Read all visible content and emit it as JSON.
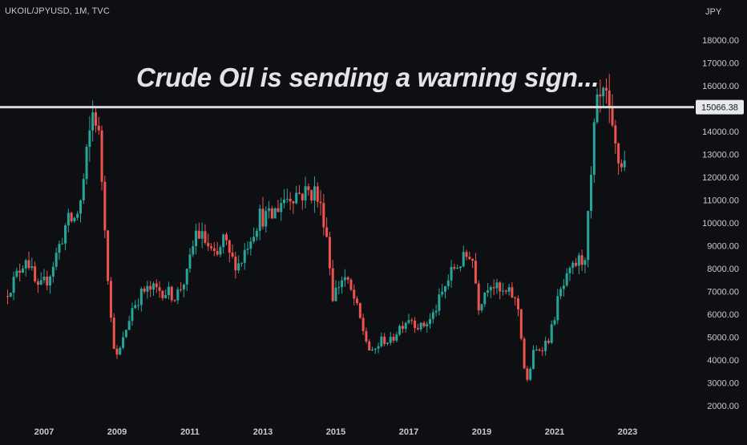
{
  "header": {
    "symbol": "UKOIL/JPYUSD, 1M, TVC",
    "headline": "Crude Oil is sending a warning sign..."
  },
  "colors": {
    "background": "#0e0f13",
    "up": "#26a69a",
    "down": "#ef5350",
    "level_line": "#d7d8dc",
    "axis_text": "#c8cad0"
  },
  "chart_data": {
    "type": "candlestick",
    "title": "",
    "currency_label": "JPY",
    "interval": "1M",
    "y_ticks": [
      2000,
      3000,
      4000,
      5000,
      6000,
      7000,
      8000,
      9000,
      10000,
      11000,
      12000,
      13000,
      14000,
      15000,
      16000,
      17000,
      18000
    ],
    "y_tick_labels": [
      "2000.00",
      "3000.00",
      "4000.00",
      "5000.00",
      "6000.00",
      "7000.00",
      "8000.00",
      "9000.00",
      "10000.00",
      "11000.00",
      "12000.00",
      "13000.00",
      "14000.00",
      "15000.00",
      "16000.00",
      "17000.00",
      "18000.00"
    ],
    "x_tick_labels": [
      "2007",
      "2009",
      "2011",
      "2013",
      "2015",
      "2017",
      "2019",
      "2021",
      "2023"
    ],
    "x_range_years": [
      2006.0,
      2024.1
    ],
    "y_range": [
      1500,
      19200
    ],
    "horizontal_level": {
      "value": 15066.38,
      "label": "15066.38"
    },
    "anchors": [
      [
        2006.0,
        6800
      ],
      [
        2006.3,
        7600
      ],
      [
        2006.6,
        8600
      ],
      [
        2006.9,
        7000
      ],
      [
        2007.2,
        7600
      ],
      [
        2007.5,
        9000
      ],
      [
        2007.7,
        10000
      ],
      [
        2007.95,
        10200
      ],
      [
        2008.1,
        11000
      ],
      [
        2008.3,
        13500
      ],
      [
        2008.45,
        15200
      ],
      [
        2008.6,
        13500
      ],
      [
        2008.75,
        10000
      ],
      [
        2008.9,
        6000
      ],
      [
        2009.05,
        4000
      ],
      [
        2009.2,
        4600
      ],
      [
        2009.5,
        6300
      ],
      [
        2009.8,
        7000
      ],
      [
        2010.1,
        7100
      ],
      [
        2010.4,
        7000
      ],
      [
        2010.7,
        6800
      ],
      [
        2011.0,
        7700
      ],
      [
        2011.25,
        9600
      ],
      [
        2011.5,
        9200
      ],
      [
        2011.8,
        8300
      ],
      [
        2012.0,
        9300
      ],
      [
        2012.2,
        8400
      ],
      [
        2012.45,
        8200
      ],
      [
        2012.7,
        9300
      ],
      [
        2013.0,
        10300
      ],
      [
        2013.3,
        10200
      ],
      [
        2013.6,
        11000
      ],
      [
        2013.9,
        11300
      ],
      [
        2014.2,
        11300
      ],
      [
        2014.5,
        11400
      ],
      [
        2014.8,
        10000
      ],
      [
        2015.0,
        6800
      ],
      [
        2015.3,
        7700
      ],
      [
        2015.6,
        6600
      ],
      [
        2015.85,
        5200
      ],
      [
        2016.05,
        4200
      ],
      [
        2016.35,
        4900
      ],
      [
        2016.6,
        4800
      ],
      [
        2016.8,
        5400
      ],
      [
        2017.1,
        5900
      ],
      [
        2017.4,
        5400
      ],
      [
        2017.7,
        5800
      ],
      [
        2018.0,
        6900
      ],
      [
        2018.3,
        8000
      ],
      [
        2018.6,
        8400
      ],
      [
        2018.8,
        8800
      ],
      [
        2019.0,
        6400
      ],
      [
        2019.3,
        7500
      ],
      [
        2019.6,
        6900
      ],
      [
        2019.9,
        6900
      ],
      [
        2020.1,
        6200
      ],
      [
        2020.3,
        2800
      ],
      [
        2020.5,
        4300
      ],
      [
        2020.75,
        4600
      ],
      [
        2020.95,
        5000
      ],
      [
        2021.2,
        6800
      ],
      [
        2021.45,
        7600
      ],
      [
        2021.7,
        8300
      ],
      [
        2021.9,
        8400
      ],
      [
        2022.05,
        11000
      ],
      [
        2022.2,
        14800
      ],
      [
        2022.35,
        15300
      ],
      [
        2022.5,
        15400
      ],
      [
        2022.6,
        14300
      ],
      [
        2022.75,
        13200
      ],
      [
        2022.85,
        12600
      ]
    ]
  }
}
